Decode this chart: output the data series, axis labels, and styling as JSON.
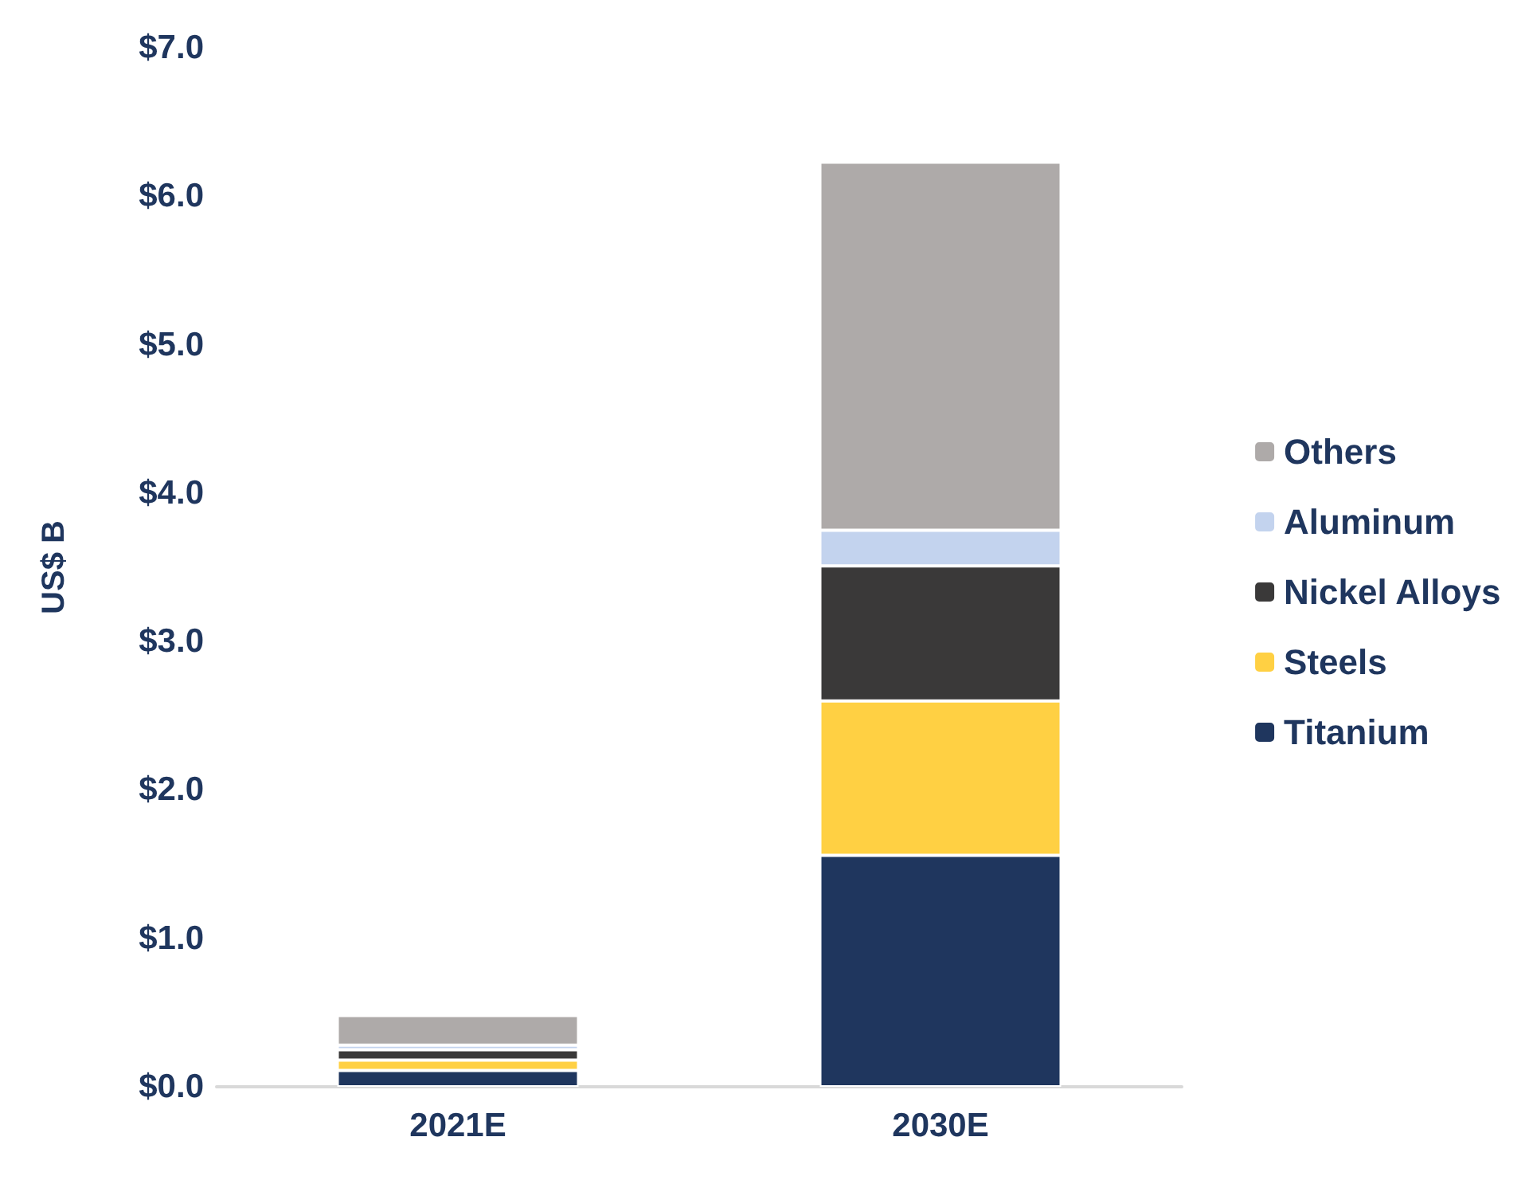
{
  "chart_data": {
    "type": "bar",
    "stacked": true,
    "ylabel": "US$ B",
    "categories": [
      "2021E",
      "2030E"
    ],
    "series": [
      {
        "name": "Titanium",
        "color": "#1f365e",
        "values": [
          0.11,
          1.56
        ]
      },
      {
        "name": "Steels",
        "color": "#ffd043",
        "values": [
          0.07,
          1.04
        ]
      },
      {
        "name": "Nickel Alloys",
        "color": "#3a3939",
        "values": [
          0.07,
          0.91
        ]
      },
      {
        "name": "Aluminum",
        "color": "#c3d3ee",
        "values": [
          0.03,
          0.24
        ]
      },
      {
        "name": "Others",
        "color": "#aeaaa9",
        "values": [
          0.2,
          2.48
        ]
      }
    ],
    "ylim": [
      0,
      7
    ],
    "yticks": [
      {
        "value": 0,
        "label": "$0.0"
      },
      {
        "value": 1,
        "label": "$1.0"
      },
      {
        "value": 2,
        "label": "$2.0"
      },
      {
        "value": 3,
        "label": "$3.0"
      },
      {
        "value": 4,
        "label": "$4.0"
      },
      {
        "value": 5,
        "label": "$5.0"
      },
      {
        "value": 6,
        "label": "$6.0"
      },
      {
        "value": 7,
        "label": "$7.0"
      }
    ],
    "grid": false,
    "legend": "right"
  }
}
